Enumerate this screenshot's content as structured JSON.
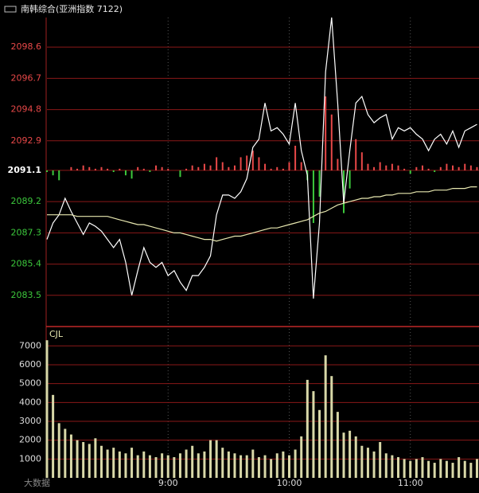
{
  "chart_data": [
    {
      "type": "line",
      "title": "南韩综合(亚洲指数 7122)",
      "baseline": 2091.1,
      "x": [
        0,
        3,
        6,
        9,
        12,
        15,
        18,
        21,
        24,
        27,
        30,
        33,
        36,
        39,
        42,
        45,
        48,
        51,
        54,
        57,
        60,
        63,
        66,
        69,
        72,
        75,
        78,
        81,
        84,
        87,
        90,
        93,
        96,
        99,
        102,
        105,
        108,
        111,
        114,
        117,
        120,
        123,
        126,
        129,
        132,
        135,
        138,
        141,
        144,
        147,
        150,
        153,
        156,
        159,
        162,
        165,
        168,
        171,
        174,
        177,
        180,
        183,
        186,
        189,
        192,
        195,
        198,
        201,
        204,
        207,
        210,
        213
      ],
      "xlim": [
        0,
        214
      ],
      "xticks": [
        {
          "value": 60,
          "label": "9:00"
        },
        {
          "value": 120,
          "label": "10:00"
        },
        {
          "value": 180,
          "label": "11:00"
        }
      ],
      "ylim": [
        2081.6,
        2100.4
      ],
      "yticks": [
        2098.6,
        2096.7,
        2094.8,
        2092.9,
        2091.1,
        2089.2,
        2087.3,
        2085.4,
        2083.5
      ],
      "above_color": "#e84848",
      "at_color": "#ffffff",
      "below_color": "#3cc83c",
      "series": [
        {
          "color": "#ffffff",
          "values": [
            2086.9,
            2087.9,
            2088.4,
            2089.4,
            2088.6,
            2087.9,
            2087.2,
            2087.9,
            2087.7,
            2087.4,
            2086.9,
            2086.4,
            2086.9,
            2085.5,
            2083.5,
            2085.0,
            2086.4,
            2085.5,
            2085.2,
            2085.5,
            2084.7,
            2085.0,
            2084.3,
            2083.8,
            2084.7,
            2084.7,
            2085.2,
            2085.9,
            2088.4,
            2089.6,
            2089.6,
            2089.4,
            2089.8,
            2090.6,
            2092.5,
            2093.0,
            2095.2,
            2093.5,
            2093.7,
            2093.3,
            2092.7,
            2095.2,
            2092.3,
            2090.8,
            2083.3,
            2087.9,
            2097.1,
            2100.4,
            2095.2,
            2089.1,
            2092.3,
            2095.2,
            2095.6,
            2094.5,
            2094.0,
            2094.3,
            2094.5,
            2093.0,
            2093.7,
            2093.5,
            2093.7,
            2093.3,
            2093.0,
            2092.3,
            2093.0,
            2093.3,
            2092.7,
            2093.5,
            2092.5,
            2093.5,
            2093.7,
            2093.9
          ]
        },
        {
          "color": "#e8e8b0",
          "values": [
            2088.4,
            2088.4,
            2088.4,
            2088.4,
            2088.4,
            2088.3,
            2088.3,
            2088.3,
            2088.3,
            2088.3,
            2088.3,
            2088.2,
            2088.1,
            2088.0,
            2087.9,
            2087.8,
            2087.8,
            2087.7,
            2087.6,
            2087.5,
            2087.4,
            2087.3,
            2087.3,
            2087.2,
            2087.1,
            2087.0,
            2086.9,
            2086.9,
            2086.8,
            2086.9,
            2087.0,
            2087.1,
            2087.1,
            2087.2,
            2087.3,
            2087.4,
            2087.5,
            2087.6,
            2087.6,
            2087.7,
            2087.8,
            2087.9,
            2088.0,
            2088.1,
            2088.3,
            2088.5,
            2088.6,
            2088.8,
            2089.0,
            2089.1,
            2089.2,
            2089.3,
            2089.4,
            2089.4,
            2089.5,
            2089.5,
            2089.6,
            2089.6,
            2089.7,
            2089.7,
            2089.7,
            2089.8,
            2089.8,
            2089.8,
            2089.9,
            2089.9,
            2089.9,
            2090.0,
            2090.0,
            2090.0,
            2090.1,
            2090.1
          ]
        }
      ],
      "bars": [
        2091.0,
        2090.8,
        2090.5,
        2091.1,
        2091.3,
        2091.2,
        2091.4,
        2091.3,
        2091.2,
        2091.3,
        2091.2,
        2091.0,
        2091.2,
        2090.8,
        2090.6,
        2091.3,
        2091.2,
        2091.0,
        2091.4,
        2091.3,
        2091.2,
        2091.1,
        2090.7,
        2091.2,
        2091.4,
        2091.3,
        2091.5,
        2091.4,
        2091.9,
        2091.6,
        2091.3,
        2091.4,
        2091.9,
        2092.0,
        2092.3,
        2091.9,
        2091.5,
        2091.2,
        2091.3,
        2091.2,
        2091.6,
        2092.6,
        2091.6,
        2090.5,
        2087.9,
        2089.5,
        2095.6,
        2094.5,
        2091.8,
        2088.5,
        2090.0,
        2093.0,
        2092.2,
        2091.5,
        2091.3,
        2091.6,
        2091.4,
        2091.5,
        2091.4,
        2091.2,
        2090.9,
        2091.3,
        2091.4,
        2091.2,
        2091.0,
        2091.3,
        2091.5,
        2091.4,
        2091.3,
        2091.5,
        2091.4,
        2091.3
      ]
    },
    {
      "type": "bar",
      "title": "CJL",
      "color": "#d8d8a8",
      "x": [
        0,
        3,
        6,
        9,
        12,
        15,
        18,
        21,
        24,
        27,
        30,
        33,
        36,
        39,
        42,
        45,
        48,
        51,
        54,
        57,
        60,
        63,
        66,
        69,
        72,
        75,
        78,
        81,
        84,
        87,
        90,
        93,
        96,
        99,
        102,
        105,
        108,
        111,
        114,
        117,
        120,
        123,
        126,
        129,
        132,
        135,
        138,
        141,
        144,
        147,
        150,
        153,
        156,
        159,
        162,
        165,
        168,
        171,
        174,
        177,
        180,
        183,
        186,
        189,
        192,
        195,
        198,
        201,
        204,
        207,
        210,
        213
      ],
      "xlim": [
        0,
        214
      ],
      "xticks": [
        {
          "value": 60,
          "label": "9:00"
        },
        {
          "value": 120,
          "label": "10:00"
        },
        {
          "value": 180,
          "label": "11:00"
        }
      ],
      "ylim": [
        0,
        7900
      ],
      "yticks": [
        1000,
        2000,
        3000,
        4000,
        5000,
        6000,
        7000
      ],
      "values": [
        7300,
        4400,
        2900,
        2600,
        2300,
        2000,
        1900,
        1800,
        2100,
        1700,
        1500,
        1600,
        1400,
        1300,
        1600,
        1200,
        1400,
        1200,
        1100,
        1300,
        1200,
        1100,
        1300,
        1500,
        1700,
        1300,
        1400,
        2000,
        2000,
        1600,
        1400,
        1300,
        1200,
        1200,
        1500,
        1100,
        1200,
        1000,
        1300,
        1400,
        1200,
        1500,
        2200,
        5200,
        4600,
        3600,
        6500,
        5400,
        3500,
        2400,
        2500,
        2200,
        1700,
        1600,
        1400,
        1900,
        1300,
        1200,
        1100,
        1000,
        900,
        1000,
        1100,
        900,
        800,
        1000,
        900,
        800,
        1100,
        900,
        800,
        1000
      ],
      "watermark": "大数据"
    }
  ]
}
